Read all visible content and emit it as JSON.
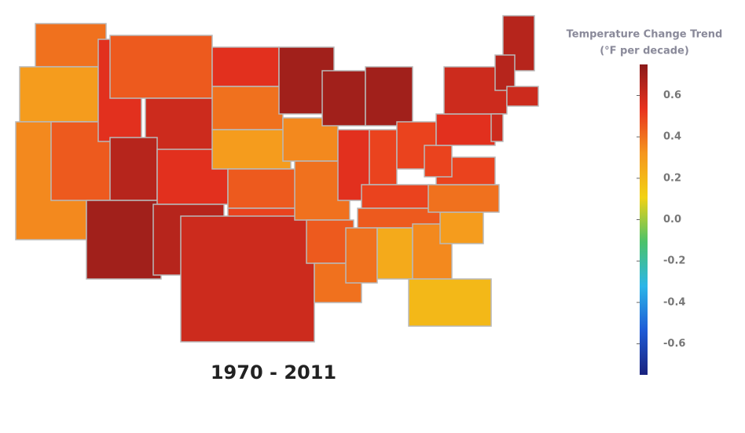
{
  "chart_data": {
    "type": "choropleth",
    "title": "1970 - 2011",
    "colorbar_title": "Temperature Change Trend",
    "colorbar_subtitle": "(°F per decade)",
    "ylim": [
      -0.75,
      0.75
    ],
    "yticks": [
      0.6,
      0.4,
      0.2,
      {
        "value": 0,
        "label": "0.0"
      },
      -0.2,
      -0.4,
      -0.6
    ],
    "colors": [
      "#1a237e",
      "#1e5bd6",
      "#2bb6e8",
      "#4cc26a",
      "#f2d214",
      "#f5961e",
      "#e8321e",
      "#8b1a1a"
    ],
    "values": [
      0.4,
      0.3,
      0.35,
      0.45,
      0.55,
      0.45,
      0.6,
      0.65,
      0.7,
      0.55,
      0.65,
      0.55,
      0.4,
      0.3,
      0.45,
      0.5,
      0.6,
      0.7,
      0.35,
      0.4,
      0.45,
      0.4,
      0.7,
      0.55,
      0.7,
      0.5,
      0.5,
      0.5,
      0.45,
      0.4,
      0.25,
      0.35,
      0.2,
      0.3,
      0.4,
      0.5,
      0.5,
      0.55,
      0.6,
      0.65,
      0.65,
      0.6,
      0.6
    ]
  }
}
